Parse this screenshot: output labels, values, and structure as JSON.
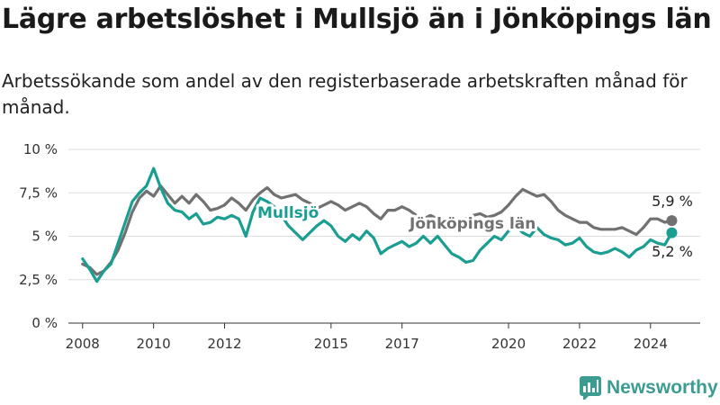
{
  "title": "Lägre arbetslöshet i Mullsjö än i Jönköpings län",
  "subtitle": "Arbetssökande som andel av den registerbaserade arbetskraften månad för månad.",
  "brand": {
    "name": "Newsworthy"
  },
  "colors": {
    "mullsjo": "#1a9e91",
    "lan": "#717171",
    "grid": "#dddddd",
    "text": "#333333"
  },
  "chart_data": {
    "type": "line",
    "title": "Lägre arbetslöshet i Mullsjö än i Jönköpings län",
    "xlabel": "",
    "ylabel": "",
    "xlim": [
      2007.6,
      2025.4
    ],
    "ylim": [
      0,
      10
    ],
    "grid": true,
    "y_ticks": [
      {
        "value": 0,
        "label": "0 %"
      },
      {
        "value": 2.5,
        "label": "2,5 %"
      },
      {
        "value": 5,
        "label": "5 %"
      },
      {
        "value": 7.5,
        "label": "7,5 %"
      },
      {
        "value": 10,
        "label": "10 %"
      }
    ],
    "x_ticks": [
      {
        "value": 2008,
        "label": "2008"
      },
      {
        "value": 2010,
        "label": "2010"
      },
      {
        "value": 2012,
        "label": "2012"
      },
      {
        "value": 2015,
        "label": "2015"
      },
      {
        "value": 2017,
        "label": "2017"
      },
      {
        "value": 2020,
        "label": "2020"
      },
      {
        "value": 2022,
        "label": "2022"
      },
      {
        "value": 2024,
        "label": "2024"
      }
    ],
    "series": [
      {
        "name": "Jönköpings län",
        "color": "#717171",
        "end_label": "5,9 %",
        "inline_label": "Jönköpings län",
        "points": [
          [
            2008.0,
            3.4
          ],
          [
            2008.2,
            3.2
          ],
          [
            2008.4,
            2.8
          ],
          [
            2008.6,
            3.0
          ],
          [
            2008.8,
            3.5
          ],
          [
            2009.0,
            4.2
          ],
          [
            2009.2,
            5.2
          ],
          [
            2009.4,
            6.4
          ],
          [
            2009.6,
            7.2
          ],
          [
            2009.8,
            7.6
          ],
          [
            2010.0,
            7.3
          ],
          [
            2010.2,
            7.9
          ],
          [
            2010.4,
            7.4
          ],
          [
            2010.6,
            6.9
          ],
          [
            2010.8,
            7.3
          ],
          [
            2011.0,
            6.9
          ],
          [
            2011.2,
            7.4
          ],
          [
            2011.4,
            7.0
          ],
          [
            2011.6,
            6.5
          ],
          [
            2011.8,
            6.6
          ],
          [
            2012.0,
            6.8
          ],
          [
            2012.2,
            7.2
          ],
          [
            2012.4,
            6.9
          ],
          [
            2012.6,
            6.5
          ],
          [
            2012.8,
            7.1
          ],
          [
            2013.0,
            7.5
          ],
          [
            2013.2,
            7.8
          ],
          [
            2013.4,
            7.4
          ],
          [
            2013.6,
            7.2
          ],
          [
            2013.8,
            7.3
          ],
          [
            2014.0,
            7.4
          ],
          [
            2014.2,
            7.1
          ],
          [
            2014.4,
            6.9
          ],
          [
            2014.6,
            6.6
          ],
          [
            2014.8,
            6.8
          ],
          [
            2015.0,
            7.0
          ],
          [
            2015.2,
            6.8
          ],
          [
            2015.4,
            6.5
          ],
          [
            2015.6,
            6.7
          ],
          [
            2015.8,
            6.9
          ],
          [
            2016.0,
            6.7
          ],
          [
            2016.2,
            6.3
          ],
          [
            2016.4,
            6.0
          ],
          [
            2016.6,
            6.5
          ],
          [
            2016.8,
            6.5
          ],
          [
            2017.0,
            6.7
          ],
          [
            2017.2,
            6.5
          ],
          [
            2017.4,
            6.2
          ],
          [
            2017.6,
            6.0
          ],
          [
            2017.8,
            6.2
          ],
          [
            2018.0,
            6.0
          ],
          [
            2018.2,
            5.9
          ],
          [
            2018.4,
            6.0
          ],
          [
            2018.6,
            5.8
          ],
          [
            2018.8,
            6.0
          ],
          [
            2019.0,
            6.2
          ],
          [
            2019.2,
            6.3
          ],
          [
            2019.4,
            6.1
          ],
          [
            2019.6,
            6.2
          ],
          [
            2019.8,
            6.4
          ],
          [
            2020.0,
            6.8
          ],
          [
            2020.2,
            7.3
          ],
          [
            2020.4,
            7.7
          ],
          [
            2020.6,
            7.5
          ],
          [
            2020.8,
            7.3
          ],
          [
            2021.0,
            7.4
          ],
          [
            2021.2,
            7.0
          ],
          [
            2021.4,
            6.5
          ],
          [
            2021.6,
            6.2
          ],
          [
            2021.8,
            6.0
          ],
          [
            2022.0,
            5.8
          ],
          [
            2022.2,
            5.8
          ],
          [
            2022.4,
            5.5
          ],
          [
            2022.6,
            5.4
          ],
          [
            2022.8,
            5.4
          ],
          [
            2023.0,
            5.4
          ],
          [
            2023.2,
            5.5
          ],
          [
            2023.4,
            5.3
          ],
          [
            2023.6,
            5.1
          ],
          [
            2023.8,
            5.5
          ],
          [
            2024.0,
            6.0
          ],
          [
            2024.2,
            6.0
          ],
          [
            2024.4,
            5.8
          ],
          [
            2024.6,
            5.9
          ]
        ]
      },
      {
        "name": "Mullsjö",
        "color": "#1a9e91",
        "end_label": "5,2 %",
        "inline_label": "Mullsjö",
        "points": [
          [
            2008.0,
            3.7
          ],
          [
            2008.2,
            3.1
          ],
          [
            2008.4,
            2.4
          ],
          [
            2008.6,
            3.0
          ],
          [
            2008.8,
            3.4
          ],
          [
            2009.0,
            4.6
          ],
          [
            2009.2,
            5.8
          ],
          [
            2009.4,
            7.0
          ],
          [
            2009.6,
            7.5
          ],
          [
            2009.8,
            7.9
          ],
          [
            2010.0,
            8.9
          ],
          [
            2010.2,
            7.8
          ],
          [
            2010.4,
            6.9
          ],
          [
            2010.6,
            6.5
          ],
          [
            2010.8,
            6.4
          ],
          [
            2011.0,
            6.0
          ],
          [
            2011.2,
            6.3
          ],
          [
            2011.4,
            5.7
          ],
          [
            2011.6,
            5.8
          ],
          [
            2011.8,
            6.1
          ],
          [
            2012.0,
            6.0
          ],
          [
            2012.2,
            6.2
          ],
          [
            2012.4,
            6.0
          ],
          [
            2012.6,
            5.0
          ],
          [
            2012.8,
            6.4
          ],
          [
            2013.0,
            7.2
          ],
          [
            2013.2,
            7.0
          ],
          [
            2013.4,
            6.7
          ],
          [
            2013.6,
            6.2
          ],
          [
            2013.8,
            5.6
          ],
          [
            2014.0,
            5.2
          ],
          [
            2014.2,
            4.8
          ],
          [
            2014.4,
            5.2
          ],
          [
            2014.6,
            5.6
          ],
          [
            2014.8,
            5.9
          ],
          [
            2015.0,
            5.6
          ],
          [
            2015.2,
            5.0
          ],
          [
            2015.4,
            4.7
          ],
          [
            2015.6,
            5.1
          ],
          [
            2015.8,
            4.8
          ],
          [
            2016.0,
            5.3
          ],
          [
            2016.2,
            4.9
          ],
          [
            2016.4,
            4.0
          ],
          [
            2016.6,
            4.3
          ],
          [
            2016.8,
            4.5
          ],
          [
            2017.0,
            4.7
          ],
          [
            2017.2,
            4.4
          ],
          [
            2017.4,
            4.6
          ],
          [
            2017.6,
            5.0
          ],
          [
            2017.8,
            4.6
          ],
          [
            2018.0,
            5.0
          ],
          [
            2018.2,
            4.5
          ],
          [
            2018.4,
            4.0
          ],
          [
            2018.6,
            3.8
          ],
          [
            2018.8,
            3.5
          ],
          [
            2019.0,
            3.6
          ],
          [
            2019.2,
            4.2
          ],
          [
            2019.4,
            4.6
          ],
          [
            2019.6,
            5.0
          ],
          [
            2019.8,
            4.8
          ],
          [
            2020.0,
            5.3
          ],
          [
            2020.2,
            5.6
          ],
          [
            2020.4,
            5.2
          ],
          [
            2020.6,
            5.0
          ],
          [
            2020.8,
            5.5
          ],
          [
            2021.0,
            5.1
          ],
          [
            2021.2,
            4.9
          ],
          [
            2021.4,
            4.8
          ],
          [
            2021.6,
            4.5
          ],
          [
            2021.8,
            4.6
          ],
          [
            2022.0,
            4.9
          ],
          [
            2022.2,
            4.4
          ],
          [
            2022.4,
            4.1
          ],
          [
            2022.6,
            4.0
          ],
          [
            2022.8,
            4.1
          ],
          [
            2023.0,
            4.3
          ],
          [
            2023.2,
            4.1
          ],
          [
            2023.4,
            3.8
          ],
          [
            2023.6,
            4.2
          ],
          [
            2023.8,
            4.4
          ],
          [
            2024.0,
            4.8
          ],
          [
            2024.2,
            4.6
          ],
          [
            2024.4,
            4.5
          ],
          [
            2024.6,
            5.2
          ]
        ]
      }
    ]
  }
}
